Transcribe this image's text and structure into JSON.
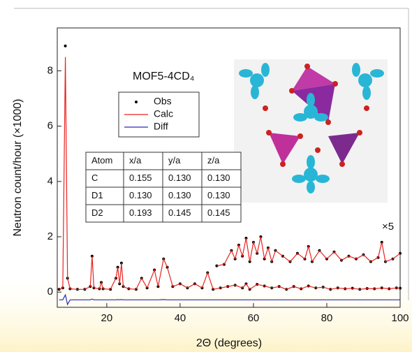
{
  "chart_data": {
    "type": "line",
    "label": "MOF5-4CD₄",
    "xlabel": "2Θ (degrees)",
    "ylabel": "Neutron count/hour (×1000)",
    "xlim": [
      6.5,
      100
    ],
    "xticks": [
      20,
      40,
      60,
      80,
      100
    ],
    "ylim": [
      -0.55,
      9.55
    ],
    "yticks": [
      0,
      2,
      4,
      6,
      8
    ],
    "x": [
      7,
      8,
      8.7,
      9.3,
      10,
      12,
      14,
      15.5,
      16,
      16.5,
      18,
      18.5,
      19,
      21,
      22.5,
      23,
      23.5,
      24,
      24.5,
      26,
      28,
      29.5,
      31,
      33,
      34,
      35.5,
      36.5,
      38,
      40,
      42,
      44,
      46,
      47.5,
      49,
      51,
      53,
      55,
      57,
      58,
      59,
      61,
      63,
      65,
      67,
      69,
      71,
      73,
      75,
      77,
      79,
      81,
      83,
      85,
      87,
      89,
      91,
      93,
      95,
      97,
      99,
      100
    ],
    "series": [
      {
        "name": "Obs",
        "color": "#000000",
        "style": "points",
        "values": [
          0.1,
          0.15,
          8.9,
          0.5,
          0.12,
          0.1,
          0.1,
          0.2,
          1.3,
          0.15,
          0.12,
          0.35,
          0.12,
          0.1,
          0.5,
          0.9,
          0.3,
          1.05,
          0.2,
          0.12,
          0.1,
          0.5,
          0.15,
          0.8,
          0.2,
          1.2,
          0.9,
          0.2,
          0.3,
          0.15,
          0.3,
          0.15,
          0.7,
          0.1,
          0.15,
          0.2,
          0.25,
          0.15,
          0.3,
          0.1,
          0.28,
          0.22,
          0.15,
          0.2,
          0.1,
          0.2,
          0.12,
          0.22,
          0.15,
          0.18,
          0.1,
          0.15,
          0.12,
          0.14,
          0.1,
          0.13,
          0.12,
          0.15,
          0.12,
          0.15,
          0.14
        ]
      },
      {
        "name": "Calc",
        "color": "#e8231f",
        "style": "line",
        "values": [
          0.1,
          0.15,
          8.5,
          0.5,
          0.12,
          0.1,
          0.1,
          0.2,
          1.3,
          0.15,
          0.12,
          0.35,
          0.12,
          0.1,
          0.5,
          0.9,
          0.3,
          1.05,
          0.2,
          0.12,
          0.1,
          0.5,
          0.15,
          0.8,
          0.2,
          1.2,
          0.9,
          0.2,
          0.3,
          0.15,
          0.3,
          0.15,
          0.7,
          0.1,
          0.15,
          0.2,
          0.25,
          0.15,
          0.3,
          0.1,
          0.28,
          0.22,
          0.15,
          0.2,
          0.1,
          0.2,
          0.12,
          0.22,
          0.15,
          0.18,
          0.1,
          0.15,
          0.12,
          0.14,
          0.1,
          0.13,
          0.12,
          0.15,
          0.12,
          0.15,
          0.14
        ]
      },
      {
        "name": "Diff",
        "color": "#2b2bb0",
        "style": "line",
        "values": [
          -0.28,
          -0.28,
          -0.1,
          -0.45,
          -0.28,
          -0.28,
          -0.28,
          -0.28,
          -0.25,
          -0.28,
          -0.28,
          -0.28,
          -0.28,
          -0.28,
          -0.28,
          -0.27,
          -0.28,
          -0.27,
          -0.28,
          -0.28,
          -0.28,
          -0.28,
          -0.28,
          -0.28,
          -0.28,
          -0.27,
          -0.28,
          -0.28,
          -0.28,
          -0.28,
          -0.28,
          -0.28,
          -0.28,
          -0.28,
          -0.28,
          -0.28,
          -0.28,
          -0.28,
          -0.28,
          -0.28,
          -0.28,
          -0.28,
          -0.28,
          -0.28,
          -0.28,
          -0.28,
          -0.28,
          -0.28,
          -0.28,
          -0.28,
          -0.28,
          -0.28,
          -0.28,
          -0.28,
          -0.28,
          -0.28,
          -0.28,
          -0.28,
          -0.28,
          -0.28,
          -0.28
        ]
      }
    ],
    "magnified": {
      "label": "×5",
      "x": [
        50,
        52,
        54,
        55,
        56,
        57,
        58,
        59,
        60,
        61,
        62,
        63,
        64,
        65,
        66,
        68,
        70,
        72,
        74,
        75,
        76,
        78,
        80,
        82,
        84,
        86,
        88,
        90,
        92,
        94,
        95,
        96,
        98,
        100
      ],
      "obs": [
        0.95,
        1.0,
        1.5,
        1.2,
        1.7,
        1.3,
        1.95,
        1.1,
        1.8,
        1.4,
        2.0,
        1.2,
        1.6,
        1.1,
        1.5,
        1.3,
        1.1,
        1.4,
        1.2,
        1.65,
        1.1,
        1.5,
        1.2,
        1.45,
        1.15,
        1.3,
        1.2,
        1.35,
        1.1,
        1.25,
        1.8,
        1.1,
        1.2,
        1.4
      ],
      "calc": [
        0.95,
        1.0,
        1.5,
        1.2,
        1.7,
        1.3,
        1.95,
        1.1,
        1.8,
        1.4,
        2.0,
        1.2,
        1.6,
        1.1,
        1.5,
        1.3,
        1.1,
        1.4,
        1.2,
        1.65,
        1.1,
        1.5,
        1.2,
        1.45,
        1.15,
        1.3,
        1.2,
        1.35,
        1.1,
        1.25,
        1.8,
        1.1,
        1.2,
        1.4
      ]
    },
    "table": {
      "columns": [
        "Atom",
        "x/a",
        "y/a",
        "z/a"
      ],
      "rows": [
        [
          "C",
          "0.155",
          "0.130",
          "0.130"
        ],
        [
          "D1",
          "0.130",
          "0.130",
          "0.130"
        ],
        [
          "D2",
          "0.193",
          "0.145",
          "0.145"
        ]
      ]
    }
  }
}
